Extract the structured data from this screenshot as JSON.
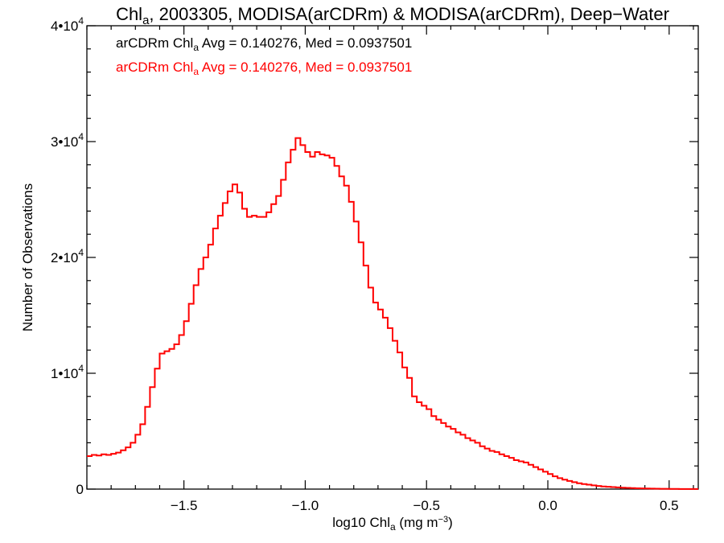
{
  "chart_data": {
    "type": "line",
    "style": "histogram-step",
    "title": {
      "prefix": "Chl",
      "sub": "a",
      "suffix": ", 2003305, MODISA(arCDRm) & MODISA(arCDRm), Deep−Water"
    },
    "xlabel": {
      "prefix": "log10 Chl",
      "sub": "a",
      "mid": " (mg m",
      "sup": "−3",
      "end": ")"
    },
    "ylabel": "Number of Observations",
    "xlim": [
      -1.9,
      0.62
    ],
    "ylim": [
      0,
      40000
    ],
    "xticks": [
      {
        "value": -1.5,
        "label": "−1.5"
      },
      {
        "value": -1.0,
        "label": "−1.0"
      },
      {
        "value": -0.5,
        "label": "−0.5"
      },
      {
        "value": 0.0,
        "label": "0.0"
      },
      {
        "value": 0.5,
        "label": "0.5"
      }
    ],
    "yticks": [
      {
        "value": 0,
        "base": "0",
        "exp": ""
      },
      {
        "value": 10000,
        "base": "1•10",
        "exp": "4"
      },
      {
        "value": 20000,
        "base": "2•10",
        "exp": "4"
      },
      {
        "value": 30000,
        "base": "3•10",
        "exp": "4"
      },
      {
        "value": 40000,
        "base": "4•10",
        "exp": "4"
      }
    ],
    "annotations": [
      {
        "prefix": "arCDRm Chl",
        "sub": "a",
        "suffix": " Avg = 0.140276, Med = 0.0937501",
        "color": "#000000"
      },
      {
        "prefix": "arCDRm Chl",
        "sub": "a",
        "suffix": " Avg = 0.140276, Med = 0.0937501",
        "color": "#ff0000"
      }
    ],
    "series": [
      {
        "color": "#ff0000",
        "x": [
          -1.9,
          -1.88,
          -1.86,
          -1.84,
          -1.82,
          -1.8,
          -1.78,
          -1.76,
          -1.74,
          -1.72,
          -1.7,
          -1.68,
          -1.66,
          -1.64,
          -1.62,
          -1.6,
          -1.58,
          -1.56,
          -1.54,
          -1.52,
          -1.5,
          -1.48,
          -1.46,
          -1.44,
          -1.42,
          -1.4,
          -1.38,
          -1.36,
          -1.34,
          -1.32,
          -1.3,
          -1.28,
          -1.26,
          -1.24,
          -1.22,
          -1.2,
          -1.18,
          -1.16,
          -1.14,
          -1.12,
          -1.1,
          -1.08,
          -1.06,
          -1.04,
          -1.02,
          -1.0,
          -0.98,
          -0.96,
          -0.94,
          -0.92,
          -0.9,
          -0.88,
          -0.86,
          -0.84,
          -0.82,
          -0.8,
          -0.78,
          -0.76,
          -0.74,
          -0.72,
          -0.7,
          -0.68,
          -0.66,
          -0.64,
          -0.62,
          -0.6,
          -0.58,
          -0.56,
          -0.54,
          -0.52,
          -0.5,
          -0.48,
          -0.46,
          -0.44,
          -0.42,
          -0.4,
          -0.38,
          -0.36,
          -0.34,
          -0.32,
          -0.3,
          -0.28,
          -0.26,
          -0.24,
          -0.22,
          -0.2,
          -0.18,
          -0.16,
          -0.14,
          -0.12,
          -0.1,
          -0.08,
          -0.06,
          -0.04,
          -0.02,
          0.0,
          0.02,
          0.04,
          0.06,
          0.08,
          0.1,
          0.12,
          0.14,
          0.16,
          0.18,
          0.2,
          0.22,
          0.24,
          0.26,
          0.28,
          0.3,
          0.32,
          0.34,
          0.36,
          0.38,
          0.4,
          0.42,
          0.44,
          0.46,
          0.48,
          0.5,
          0.52,
          0.54,
          0.56,
          0.58,
          0.6
        ],
        "values": [
          2850,
          2950,
          2900,
          3000,
          2950,
          3050,
          3150,
          3350,
          3600,
          4000,
          4700,
          5600,
          7100,
          8800,
          10400,
          11700,
          11900,
          12100,
          12500,
          13300,
          14500,
          16000,
          17600,
          19000,
          20000,
          21100,
          22500,
          23600,
          24700,
          25700,
          26300,
          25600,
          24200,
          23500,
          23600,
          23500,
          23500,
          23900,
          24600,
          25300,
          26700,
          28200,
          29300,
          30300,
          29700,
          29100,
          28700,
          29100,
          28900,
          28800,
          28600,
          27900,
          27000,
          26200,
          24800,
          23100,
          21300,
          19300,
          17400,
          16100,
          15500,
          14800,
          13900,
          12800,
          11800,
          10500,
          9600,
          8000,
          7500,
          7200,
          6900,
          6300,
          6000,
          5700,
          5400,
          5200,
          4900,
          4700,
          4400,
          4200,
          4000,
          3700,
          3500,
          3300,
          3200,
          3000,
          2850,
          2700,
          2500,
          2400,
          2300,
          2100,
          1900,
          1700,
          1500,
          1300,
          1100,
          950,
          820,
          700,
          600,
          500,
          430,
          380,
          320,
          270,
          230,
          200,
          170,
          150,
          120,
          100,
          85,
          70,
          60,
          50,
          40,
          35,
          30,
          25,
          20,
          15,
          12,
          10,
          8,
          5
        ]
      }
    ]
  }
}
